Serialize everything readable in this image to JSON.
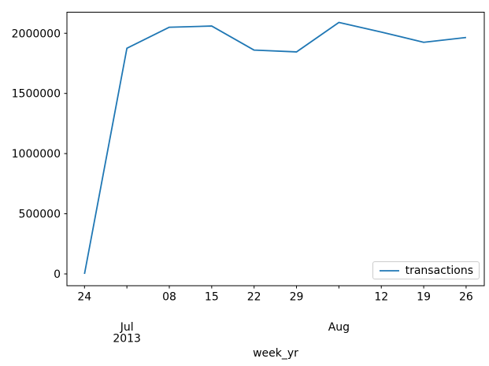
{
  "chart_data": {
    "type": "line",
    "title": "",
    "xlabel": "week_yr",
    "ylabel": "",
    "grid": false,
    "legend": {
      "label": "transactions",
      "position": "lower right"
    },
    "line_color": "#1f77b4",
    "axes_color": "#000000",
    "legend_border_color": "#cccccc",
    "x_dates": [
      "2013-06-24",
      "2013-07-01",
      "2013-07-08",
      "2013-07-15",
      "2013-07-22",
      "2013-07-29",
      "2013-08-05",
      "2013-08-12",
      "2013-08-19",
      "2013-08-26"
    ],
    "x_days": [
      0,
      7,
      14,
      21,
      28,
      35,
      42,
      49,
      56,
      63
    ],
    "values": [
      0,
      1875000,
      2050000,
      2060000,
      1860000,
      1845000,
      2090000,
      2010000,
      1925000,
      1965000
    ],
    "x_tick_days": [
      0,
      7,
      14,
      21,
      28,
      35,
      42,
      49,
      56,
      63
    ],
    "x_tick_labels": [
      "24",
      "",
      "08",
      "15",
      "22",
      "29",
      "",
      "12",
      "19",
      "26"
    ],
    "x_secondary_labels": [
      {
        "day": 7,
        "lines": [
          "Jul",
          "2013"
        ]
      },
      {
        "day": 42,
        "lines": [
          "Aug"
        ]
      }
    ],
    "y_ticks": [
      0,
      500000,
      1000000,
      1500000,
      2000000
    ],
    "y_tick_labels": [
      "0",
      "500000",
      "1000000",
      "1500000",
      "2000000"
    ],
    "xlim_days": [
      -2.9,
      66.0
    ],
    "ylim": [
      -98000,
      2175000
    ]
  }
}
